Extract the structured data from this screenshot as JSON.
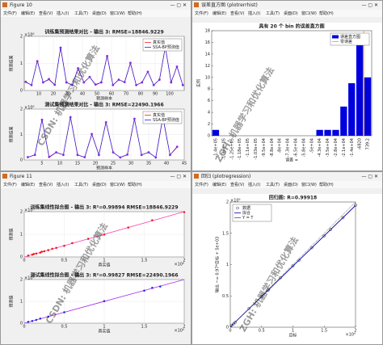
{
  "windows": [
    {
      "title": "Figure 10"
    },
    {
      "title": "误差直方图 (plotrerrhist)"
    },
    {
      "title": "Figure 11"
    },
    {
      "title": "回归 (plotregression)"
    }
  ],
  "menu": [
    "文件(F)",
    "编辑(E)",
    "查看(V)",
    "插入(I)",
    "工具(T)",
    "桌面(D)",
    "窗口(W)",
    "帮助(H)"
  ],
  "watermarks": [
    "CSDN: 机器学习和优化算法",
    "ZGH: 机器学习和优化算法"
  ],
  "chart_data": [
    {
      "type": "line",
      "title": "训练集预测结果对比 - 输出 3: RMSE=18846.9229",
      "xlabel": "预测样本",
      "ylabel": "预测结果",
      "y_exponent": "×10⁶",
      "grid": true,
      "legend": "upper right",
      "x": [
        1,
        5,
        9,
        13,
        17,
        21,
        25,
        29,
        33,
        37,
        41,
        45,
        49,
        53,
        57,
        61,
        65,
        69,
        73,
        77,
        81,
        85,
        89,
        93,
        97,
        101,
        105,
        109
      ],
      "xlim": [
        0,
        110
      ],
      "xticks": [
        10,
        20,
        30,
        40,
        50,
        60,
        70,
        80,
        90,
        100
      ],
      "ylim": [
        0,
        2
      ],
      "yticks": [
        0,
        1,
        2
      ],
      "series": [
        {
          "name": "真实值",
          "color": "#ff2020",
          "values": [
            0.3,
            0.2,
            1.1,
            0.3,
            0.4,
            0.2,
            1.6,
            0.3,
            0.2,
            0.8,
            0.3,
            0.5,
            0.2,
            0.3,
            1.3,
            0.2,
            0.4,
            0.3,
            1.0,
            0.2,
            0.3,
            0.7,
            0.2,
            0.4,
            1.6,
            0.3,
            0.9,
            0.2
          ]
        },
        {
          "name": "SSA-BP预测值",
          "color": "#2222ee",
          "marker": "#8a2be2",
          "values": [
            0.32,
            0.2,
            1.08,
            0.3,
            0.42,
            0.21,
            1.58,
            0.3,
            0.2,
            0.82,
            0.3,
            0.5,
            0.22,
            0.3,
            1.27,
            0.2,
            0.4,
            0.31,
            1.02,
            0.2,
            0.3,
            0.69,
            0.2,
            0.4,
            1.61,
            0.3,
            0.88,
            0.2
          ]
        }
      ]
    },
    {
      "type": "line",
      "title": "测试集预测结果对比 - 输出 3: RMSE=22490.1966",
      "xlabel": "预测样本",
      "ylabel": "预测结果",
      "y_exponent": "×10⁶",
      "grid": true,
      "legend": "upper right",
      "x": [
        1,
        3,
        5,
        7,
        9,
        11,
        13,
        15,
        17,
        19,
        21,
        23,
        25,
        27,
        29,
        31,
        33,
        35,
        37,
        39,
        41,
        43
      ],
      "xlim": [
        0,
        45
      ],
      "xticks": [
        5,
        10,
        15,
        20,
        25,
        30,
        35,
        40,
        45
      ],
      "ylim": [
        0,
        2
      ],
      "yticks": [
        0,
        1,
        2
      ],
      "series": [
        {
          "name": "真实值",
          "color": "#ff2020",
          "values": [
            0.1,
            0.2,
            1.6,
            0.1,
            0.3,
            0.2,
            1.7,
            0.2,
            0.1,
            1.0,
            0.2,
            1.5,
            0.3,
            0.1,
            0.2,
            1.6,
            0.2,
            0.3,
            0.1,
            1.7,
            0.2,
            0.5
          ]
        },
        {
          "name": "SSA-BP预测值",
          "color": "#2222ee",
          "marker": "#8a2be2",
          "values": [
            0.11,
            0.2,
            1.58,
            0.12,
            0.3,
            0.2,
            1.68,
            0.2,
            0.11,
            1.02,
            0.2,
            1.48,
            0.3,
            0.1,
            0.21,
            1.62,
            0.2,
            0.3,
            0.1,
            1.66,
            0.2,
            0.52
          ]
        }
      ]
    },
    {
      "type": "histogram",
      "title": "具有 20 个 bin 的误差直方图",
      "xlabel": "误差 =",
      "ylabel": "实例",
      "legend": "upper right",
      "categories": [
        "-1.4e+05",
        "-1.33e+05",
        "-1.25e+05",
        "-1.18e+05",
        "-1.1e+05",
        "-1.03e+05",
        "-9.5e+04",
        "-8.8e+04",
        "-8e+04",
        "-7.3e+04",
        "-6.5e+04",
        "-5.8e+04",
        "-5e+04",
        "-4.3e+04",
        "-3.5e+04",
        "-2.8e+04",
        "-2.1e+04",
        "-1.4e+04",
        "-6820",
        "739.2"
      ],
      "ylim": [
        0,
        18
      ],
      "yticks": [
        0,
        2,
        4,
        6,
        8,
        10,
        12,
        14,
        16,
        18
      ],
      "series": [
        {
          "name": "误差直方图",
          "color": "#0000dd",
          "values": [
            1,
            0,
            0,
            0,
            0,
            0,
            0,
            0,
            0,
            0,
            0,
            0,
            0,
            1,
            1,
            1,
            5,
            9,
            17,
            10
          ]
        }
      ],
      "zero_error": {
        "name": "零误差",
        "color": "#ff9900"
      }
    },
    {
      "type": "scatter",
      "title": "训练集线性拟合图 - 输出 3: R²=0.99894  RMSE=18846.9229",
      "xlabel": "真实值",
      "ylabel": "预测值",
      "x_exponent": "×10⁶",
      "y_exponent": "×10⁶",
      "grid": true,
      "xlim": [
        0,
        2
      ],
      "xticks": [
        0,
        0.5,
        1,
        1.5,
        2
      ],
      "ylim": [
        0,
        2
      ],
      "yticks": [
        0,
        1,
        2
      ],
      "series": [
        {
          "style": "line",
          "color": "#ff44aa",
          "x": [
            0,
            2
          ],
          "values": [
            0,
            2
          ]
        },
        {
          "style": "markers",
          "color": "#ee1111",
          "x": [
            0.05,
            0.1,
            0.12,
            0.15,
            0.2,
            0.22,
            0.25,
            0.3,
            0.35,
            0.4,
            0.5,
            0.6,
            0.8,
            1.0,
            1.3,
            1.6,
            2.0
          ],
          "values": [
            0.06,
            0.1,
            0.13,
            0.15,
            0.19,
            0.23,
            0.25,
            0.3,
            0.36,
            0.4,
            0.49,
            0.61,
            0.8,
            0.99,
            1.3,
            1.62,
            1.98
          ]
        }
      ]
    },
    {
      "type": "scatter",
      "title": "测试集线性拟合图 - 输出 3: R²=0.99827  RMSE=22490.1966",
      "xlabel": "真实值",
      "ylabel": "预测值",
      "x_exponent": "×10⁶",
      "y_exponent": "×10⁶",
      "grid": true,
      "xlim": [
        0,
        2
      ],
      "xticks": [
        0,
        0.5,
        1,
        1.5,
        2
      ],
      "ylim": [
        0,
        2
      ],
      "yticks": [
        0,
        1,
        2
      ],
      "series": [
        {
          "style": "line",
          "color": "#aa33ee",
          "x": [
            0,
            2
          ],
          "values": [
            0,
            2
          ]
        },
        {
          "style": "markers",
          "color": "#2222dd",
          "x": [
            0.05,
            0.1,
            0.15,
            0.2,
            0.3,
            0.5,
            1.0,
            1.5,
            1.6,
            1.7
          ],
          "values": [
            0.06,
            0.1,
            0.15,
            0.21,
            0.3,
            0.5,
            1.01,
            1.49,
            1.62,
            1.68
          ]
        }
      ]
    },
    {
      "type": "scatter",
      "title": "回归图: R=0.99918",
      "xlabel": "目标",
      "ylabel": "输出 ~= 0.97*目标 + 5e+03",
      "x_exponent": "×10⁶",
      "y_exponent": "×10⁶",
      "legend": "upper left",
      "xlim": [
        0,
        2
      ],
      "xticks": [
        0,
        0.5,
        1,
        1.5,
        2
      ],
      "ylim": [
        0,
        2
      ],
      "yticks": [
        0,
        0.5,
        1,
        1.5,
        2
      ],
      "series": [
        {
          "name": "数据",
          "style": "circles",
          "color": "#000000",
          "x": [
            0.02,
            0.05,
            0.08,
            0.3,
            0.5,
            0.6,
            0.8,
            1.0,
            1.1,
            1.3,
            1.5,
            1.6,
            1.8,
            2.0
          ],
          "values": [
            0.03,
            0.05,
            0.08,
            0.3,
            0.49,
            0.59,
            0.79,
            0.98,
            1.07,
            1.27,
            1.46,
            1.56,
            1.75,
            1.95
          ]
        },
        {
          "name": "拟合",
          "style": "line",
          "color": "#0000aa",
          "x": [
            0,
            2
          ],
          "values": [
            0.005,
            1.945
          ]
        },
        {
          "name": "Y = T",
          "style": "dotted",
          "color": "#555555",
          "x": [
            0,
            2
          ],
          "values": [
            0,
            2
          ]
        }
      ]
    }
  ]
}
